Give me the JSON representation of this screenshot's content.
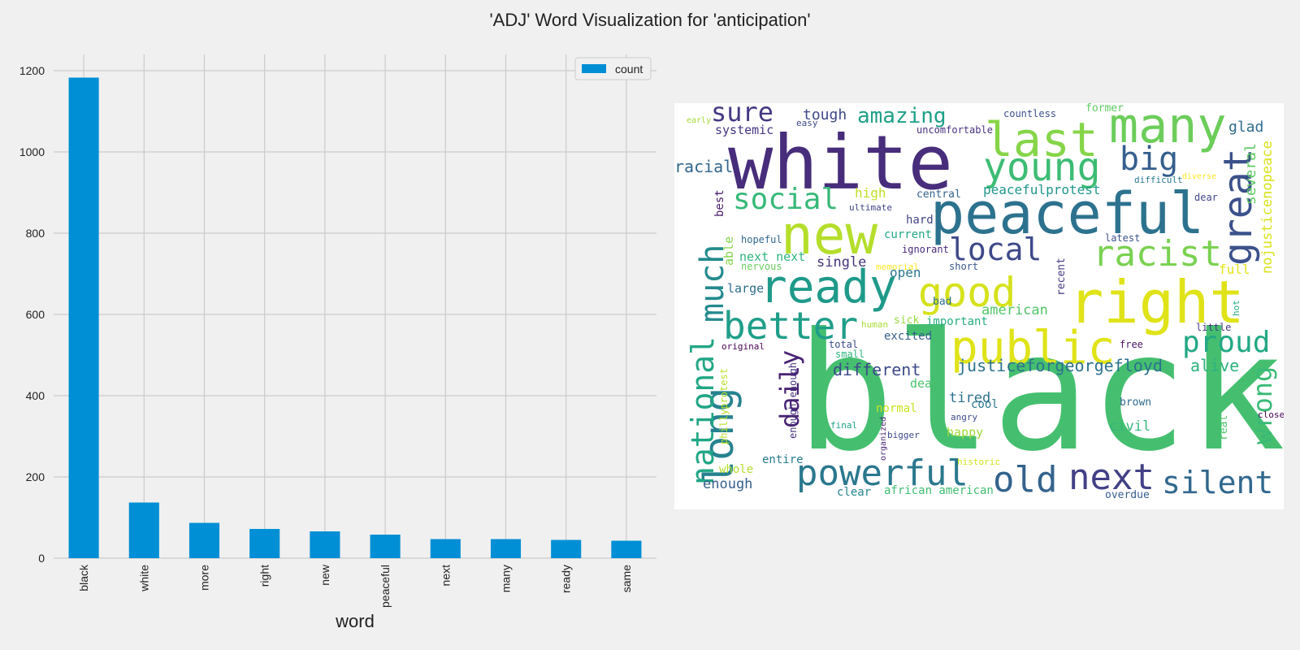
{
  "title": "'ADJ' Word Visualization for 'anticipation'",
  "chart_data": [
    {
      "type": "bar",
      "title": "",
      "xlabel": "word",
      "ylabel": "",
      "categories": [
        "black",
        "white",
        "more",
        "right",
        "new",
        "peaceful",
        "next",
        "many",
        "ready",
        "same"
      ],
      "series": [
        {
          "name": "count",
          "values": [
            1183,
            137,
            87,
            72,
            66,
            58,
            47,
            47,
            45,
            43
          ]
        }
      ],
      "ylim": [
        0,
        1240
      ],
      "yticks": [
        0,
        200,
        400,
        600,
        800,
        1000,
        1200
      ],
      "grid": true,
      "legend": "top-right",
      "color": "#008fd5"
    },
    {
      "type": "wordcloud",
      "background": "#ffffff",
      "words": [
        {
          "text": "black",
          "color": "#45bf6f"
        },
        {
          "text": "white",
          "color": "#472d7b"
        },
        {
          "text": "peaceful",
          "color": "#2c728e"
        },
        {
          "text": "right",
          "color": "#dfe318"
        },
        {
          "text": "new",
          "color": "#b5de2b"
        },
        {
          "text": "many",
          "color": "#6ccd5a"
        },
        {
          "text": "last",
          "color": "#86d549"
        },
        {
          "text": "ready",
          "color": "#1f9a8a"
        },
        {
          "text": "public",
          "color": "#dfe318"
        },
        {
          "text": "young",
          "color": "#3dbc74"
        },
        {
          "text": "good",
          "color": "#d5e21a"
        },
        {
          "text": "better",
          "color": "#1f9e89"
        },
        {
          "text": "long",
          "color": "#26828e"
        },
        {
          "text": "much",
          "color": "#238a8d"
        },
        {
          "text": "national",
          "color": "#21a685"
        },
        {
          "text": "racist",
          "color": "#7ad151"
        },
        {
          "text": "great",
          "color": "#3b518b"
        },
        {
          "text": "next",
          "color": "#424086"
        },
        {
          "text": "silent",
          "color": "#31688e"
        },
        {
          "text": "powerful",
          "color": "#2a788e"
        },
        {
          "text": "old",
          "color": "#33638d"
        },
        {
          "text": "local",
          "color": "#3e4989"
        },
        {
          "text": "big",
          "color": "#355f8d"
        },
        {
          "text": "social",
          "color": "#37b878"
        },
        {
          "text": "proud",
          "color": "#22a884"
        },
        {
          "text": "daily",
          "color": "#482374"
        },
        {
          "text": "sure",
          "color": "#443983"
        },
        {
          "text": "amazing",
          "color": "#1fa088"
        },
        {
          "text": "wrong",
          "color": "#3aba76"
        },
        {
          "text": "different",
          "color": "#3e4a89"
        },
        {
          "text": "justiceforgeorgefloyd",
          "color": "#2c728e"
        },
        {
          "text": "alive",
          "color": "#2db27d"
        },
        {
          "text": "racial",
          "color": "#31678e"
        },
        {
          "text": "nojusticenopeace",
          "color": "#d8e219"
        },
        {
          "text": "several",
          "color": "#5ec962"
        },
        {
          "text": "glad",
          "color": "#2f6c8e"
        },
        {
          "text": "tough",
          "color": "#3f4788"
        },
        {
          "text": "systemic",
          "color": "#453581"
        },
        {
          "text": "peacefulprotest",
          "color": "#1f978b"
        },
        {
          "text": "american",
          "color": "#52c569"
        },
        {
          "text": "tired",
          "color": "#2d708e"
        },
        {
          "text": "civil",
          "color": "#35b779"
        },
        {
          "text": "enough",
          "color": "#355e8d"
        },
        {
          "text": "high",
          "color": "#c0df25"
        },
        {
          "text": "single",
          "color": "#46337e"
        },
        {
          "text": "open",
          "color": "#2a768e"
        },
        {
          "text": "full",
          "color": "#e2e418"
        },
        {
          "text": "able",
          "color": "#84d44b"
        },
        {
          "text": "best",
          "color": "#481a6c"
        },
        {
          "text": "next next",
          "color": "#2fb47c"
        },
        {
          "text": "large",
          "color": "#2e6e8e"
        },
        {
          "text": "important",
          "color": "#27ad81"
        },
        {
          "text": "excited",
          "color": "#365c8d"
        },
        {
          "text": "dead",
          "color": "#4ac16d"
        },
        {
          "text": "cool",
          "color": "#2a778e"
        },
        {
          "text": "happy",
          "color": "#a0da39"
        },
        {
          "text": "normal",
          "color": "#cae11f"
        },
        {
          "text": "whole",
          "color": "#b2dd2d"
        },
        {
          "text": "entire",
          "color": "#287c8e"
        },
        {
          "text": "clear",
          "color": "#25848e"
        },
        {
          "text": "african american",
          "color": "#40bd72"
        },
        {
          "text": "overdue",
          "color": "#365d8d"
        },
        {
          "text": "brown",
          "color": "#2f6b8e"
        },
        {
          "text": "real",
          "color": "#4ec36b"
        },
        {
          "text": "close",
          "color": "#440154"
        },
        {
          "text": "hard",
          "color": "#414487"
        },
        {
          "text": "current",
          "color": "#22a785"
        },
        {
          "text": "central",
          "color": "#33628d"
        },
        {
          "text": "hopeful",
          "color": "#31668e"
        },
        {
          "text": "nervous",
          "color": "#67cc5c"
        },
        {
          "text": "ignorant",
          "color": "#482979"
        },
        {
          "text": "memorial",
          "color": "#fde725"
        },
        {
          "text": "short",
          "color": "#39568c"
        },
        {
          "text": "recent",
          "color": "#443b84"
        },
        {
          "text": "bad",
          "color": "#2d718e"
        },
        {
          "text": "sick",
          "color": "#95d840"
        },
        {
          "text": "human",
          "color": "#a8db34"
        },
        {
          "text": "total",
          "color": "#3d4d8a"
        },
        {
          "text": "small",
          "color": "#2eb37c"
        },
        {
          "text": "original",
          "color": "#440154"
        },
        {
          "text": "enough enough",
          "color": "#46327e"
        },
        {
          "text": "phillyprotest",
          "color": "#b8de29"
        },
        {
          "text": "free",
          "color": "#481467"
        },
        {
          "text": "little",
          "color": "#453781"
        },
        {
          "text": "hot",
          "color": "#25ac82"
        },
        {
          "text": "latest",
          "color": "#3b528b"
        },
        {
          "text": "angry",
          "color": "#3e4c8a"
        },
        {
          "text": "final",
          "color": "#1fa187"
        },
        {
          "text": "bigger",
          "color": "#3e4989"
        },
        {
          "text": "organized",
          "color": "#482777"
        },
        {
          "text": "historic",
          "color": "#d2e21b"
        },
        {
          "text": "ultimate",
          "color": "#414287"
        },
        {
          "text": "countless",
          "color": "#3c4f8a"
        },
        {
          "text": "former",
          "color": "#5ec962"
        },
        {
          "text": "uncomfortable",
          "color": "#46307e"
        },
        {
          "text": "easy",
          "color": "#3e4989"
        },
        {
          "text": "early",
          "color": "#a5db36"
        },
        {
          "text": "difficult",
          "color": "#2a788e"
        },
        {
          "text": "diverse",
          "color": "#fde725"
        },
        {
          "text": "dear",
          "color": "#3f4788"
        }
      ]
    }
  ]
}
